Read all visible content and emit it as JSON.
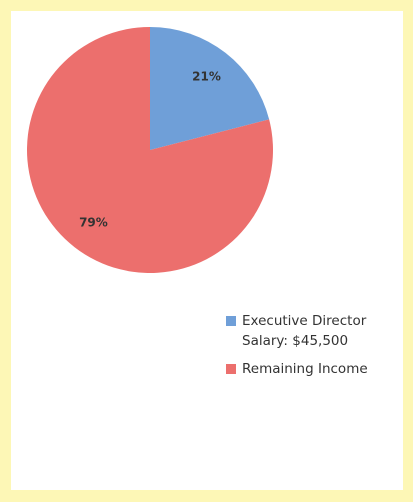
{
  "chart_data": {
    "type": "pie",
    "categories": [
      "Executive Director Salary: $45,500",
      "Remaining Income"
    ],
    "values": [
      21,
      79
    ],
    "value_labels": [
      "21%",
      "79%"
    ],
    "colors": [
      "#6f9fd8",
      "#ec6f6d"
    ],
    "legend": "right"
  }
}
